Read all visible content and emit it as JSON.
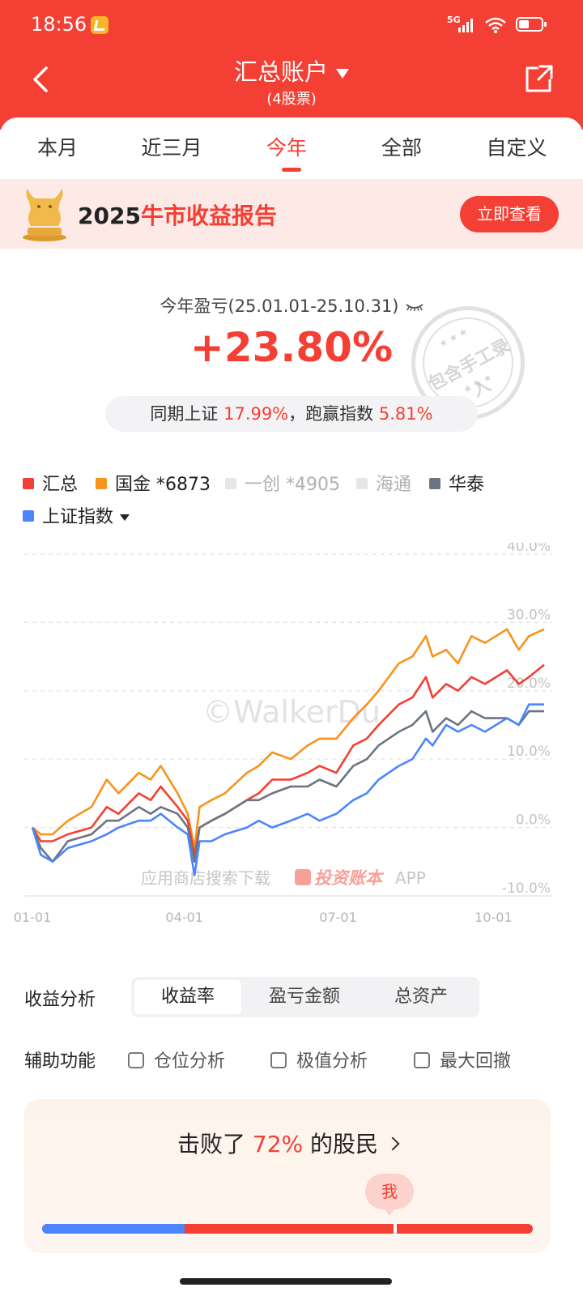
{
  "status_bar": {
    "time": "18:56",
    "network": "5G"
  },
  "header": {
    "title": "汇总账户",
    "subtitle": "(4股票)"
  },
  "tabs": [
    {
      "label": "本月",
      "active": false
    },
    {
      "label": "近三月",
      "active": false
    },
    {
      "label": "今年",
      "active": true
    },
    {
      "label": "全部",
      "active": false
    },
    {
      "label": "自定义",
      "active": false
    }
  ],
  "banner": {
    "year": "2025",
    "title_red": "牛市收益报告",
    "button": "立即查看"
  },
  "summary": {
    "label": "今年盈亏(25.01.01-25.10.31)",
    "value": "+23.80%",
    "compare_prefix": "同期上证",
    "compare_index_value": "17.99%",
    "compare_middle": "，跑赢指数",
    "compare_excess_value": "5.81%",
    "stamp_text": "包含手工录入"
  },
  "legend": [
    {
      "label": "汇总",
      "color": "#f43f34",
      "muted": false
    },
    {
      "label": "国金 *6873",
      "color": "#f7931e",
      "muted": false
    },
    {
      "label": "一创 *4905",
      "color": "#e6e6e6",
      "muted": true
    },
    {
      "label": "海通",
      "color": "#e6e6e6",
      "muted": true
    },
    {
      "label": "华泰",
      "color": "#6b7480",
      "muted": false
    },
    {
      "label": "上证指数",
      "color": "#4c84ff",
      "muted": false
    }
  ],
  "chart_watermark": "©WalkerDu",
  "chart_promo": {
    "prefix": "应用商店搜索下载",
    "brand": "投资账本",
    "suffix": "APP"
  },
  "chart_data": {
    "type": "line",
    "x_ticks": [
      "01-01",
      "04-01",
      "07-01",
      "10-01"
    ],
    "y_ticks": [
      "40.0%",
      "30.0%",
      "20.0%",
      "10.0%",
      "0.0%",
      "-10.0%"
    ],
    "ylim": [
      -10,
      40
    ],
    "x_range": [
      "2025-01-01",
      "2025-10-31"
    ],
    "series": [
      {
        "name": "国金 *6873",
        "color": "#f7931e",
        "x": [
          "2025-01-01",
          "2025-01-06",
          "2025-01-13",
          "2025-01-22",
          "2025-02-05",
          "2025-02-14",
          "2025-02-21",
          "2025-03-05",
          "2025-03-12",
          "2025-03-18",
          "2025-03-28",
          "2025-04-03",
          "2025-04-07",
          "2025-04-10",
          "2025-04-17",
          "2025-04-25",
          "2025-05-08",
          "2025-05-15",
          "2025-05-23",
          "2025-06-03",
          "2025-06-13",
          "2025-06-20",
          "2025-06-30",
          "2025-07-10",
          "2025-07-18",
          "2025-07-25",
          "2025-08-06",
          "2025-08-14",
          "2025-08-22",
          "2025-08-26",
          "2025-09-03",
          "2025-09-10",
          "2025-09-18",
          "2025-09-26",
          "2025-10-09",
          "2025-10-16",
          "2025-10-22",
          "2025-10-31"
        ],
        "values": [
          0,
          -1,
          -1,
          1,
          3,
          7,
          5,
          8,
          7,
          9,
          5,
          2,
          -3,
          3,
          4,
          5,
          8,
          9,
          11,
          10,
          12,
          13,
          13,
          16,
          18,
          20,
          24,
          25,
          28,
          25,
          26,
          24,
          28,
          27,
          29,
          26,
          28,
          29
        ]
      },
      {
        "name": "汇总",
        "color": "#f43f34",
        "x": [
          "2025-01-01",
          "2025-01-06",
          "2025-01-13",
          "2025-01-22",
          "2025-02-05",
          "2025-02-14",
          "2025-02-21",
          "2025-03-05",
          "2025-03-12",
          "2025-03-18",
          "2025-03-28",
          "2025-04-03",
          "2025-04-07",
          "2025-04-10",
          "2025-04-17",
          "2025-04-25",
          "2025-05-08",
          "2025-05-15",
          "2025-05-23",
          "2025-06-03",
          "2025-06-13",
          "2025-06-20",
          "2025-06-30",
          "2025-07-10",
          "2025-07-18",
          "2025-07-25",
          "2025-08-06",
          "2025-08-14",
          "2025-08-22",
          "2025-08-26",
          "2025-09-03",
          "2025-09-10",
          "2025-09-18",
          "2025-09-26",
          "2025-10-09",
          "2025-10-16",
          "2025-10-22",
          "2025-10-31"
        ],
        "values": [
          0,
          -2,
          -2,
          -1,
          0,
          3,
          2,
          5,
          4,
          6,
          3,
          1,
          -4,
          0,
          1,
          2,
          4,
          5,
          7,
          7,
          8,
          9,
          8,
          12,
          13,
          15,
          18,
          19,
          22,
          19,
          21,
          20,
          22,
          21,
          23,
          21,
          22,
          23.8
        ]
      },
      {
        "name": "华泰",
        "color": "#6b7480",
        "x": [
          "2025-01-01",
          "2025-01-06",
          "2025-01-13",
          "2025-01-22",
          "2025-02-05",
          "2025-02-14",
          "2025-02-21",
          "2025-03-05",
          "2025-03-12",
          "2025-03-18",
          "2025-03-28",
          "2025-04-03",
          "2025-04-07",
          "2025-04-10",
          "2025-04-17",
          "2025-04-25",
          "2025-05-08",
          "2025-05-15",
          "2025-05-23",
          "2025-06-03",
          "2025-06-13",
          "2025-06-20",
          "2025-06-30",
          "2025-07-10",
          "2025-07-18",
          "2025-07-25",
          "2025-08-06",
          "2025-08-14",
          "2025-08-22",
          "2025-08-26",
          "2025-09-03",
          "2025-09-10",
          "2025-09-18",
          "2025-09-26",
          "2025-10-09",
          "2025-10-16",
          "2025-10-22",
          "2025-10-31"
        ],
        "values": [
          0,
          -3,
          -5,
          -2,
          -1,
          1,
          1,
          3,
          2,
          3,
          2,
          0,
          -5,
          0,
          1,
          2,
          4,
          4,
          5,
          6,
          6,
          7,
          6,
          9,
          10,
          12,
          14,
          15,
          17,
          14,
          16,
          15,
          17,
          16,
          16,
          15,
          17,
          17
        ]
      },
      {
        "name": "上证指数",
        "color": "#4c84ff",
        "x": [
          "2025-01-01",
          "2025-01-06",
          "2025-01-13",
          "2025-01-22",
          "2025-02-05",
          "2025-02-14",
          "2025-02-21",
          "2025-03-05",
          "2025-03-12",
          "2025-03-18",
          "2025-03-28",
          "2025-04-03",
          "2025-04-07",
          "2025-04-10",
          "2025-04-17",
          "2025-04-25",
          "2025-05-08",
          "2025-05-15",
          "2025-05-23",
          "2025-06-03",
          "2025-06-13",
          "2025-06-20",
          "2025-06-30",
          "2025-07-10",
          "2025-07-18",
          "2025-07-25",
          "2025-08-06",
          "2025-08-14",
          "2025-08-22",
          "2025-08-26",
          "2025-09-03",
          "2025-09-10",
          "2025-09-18",
          "2025-09-26",
          "2025-10-09",
          "2025-10-16",
          "2025-10-22",
          "2025-10-31"
        ],
        "values": [
          0,
          -4,
          -5,
          -3,
          -2,
          -1,
          0,
          1,
          1,
          2,
          0,
          -1,
          -7,
          -2,
          -2,
          -1,
          0,
          1,
          0,
          1,
          2,
          1,
          2,
          4,
          5,
          7,
          9,
          10,
          13,
          12,
          15,
          14,
          15,
          14,
          16,
          15,
          18,
          18
        ]
      }
    ]
  },
  "analysis": {
    "label": "收益分析",
    "options": [
      {
        "label": "收益率",
        "active": true
      },
      {
        "label": "盈亏金额",
        "active": false
      },
      {
        "label": "总资产",
        "active": false
      }
    ]
  },
  "aux": {
    "label": "辅助功能",
    "checks": [
      {
        "label": "仓位分析",
        "checked": false
      },
      {
        "label": "极值分析",
        "checked": false
      },
      {
        "label": "最大回撤",
        "checked": false
      }
    ]
  },
  "beat": {
    "prefix": "击败了",
    "percent": "72%",
    "suffix": "的股民",
    "me_label": "我",
    "percentile": 0.72,
    "blue_fraction": 0.29
  }
}
